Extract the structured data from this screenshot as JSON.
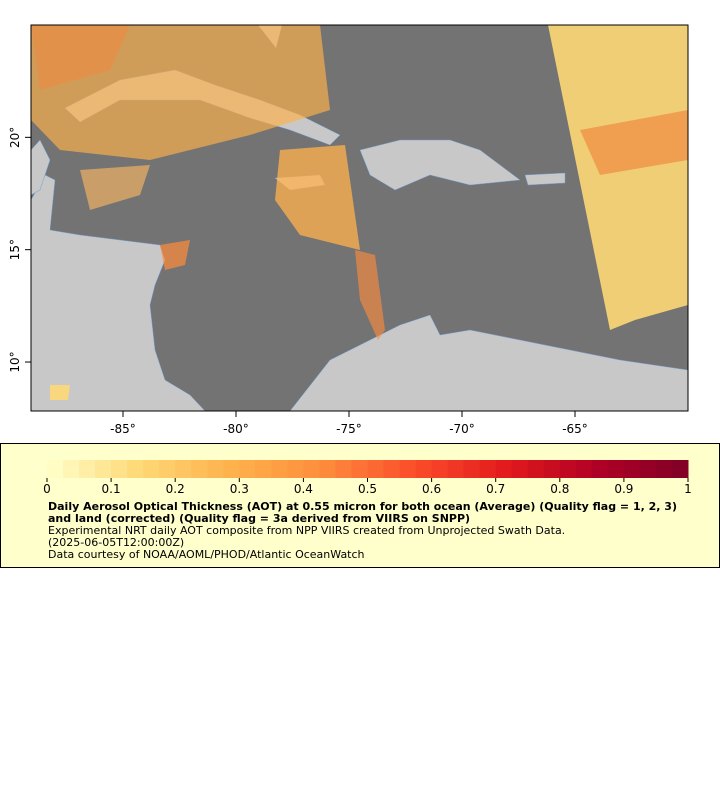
{
  "map": {
    "xlim": [
      -89.07,
      -60
    ],
    "ylim": [
      7.82,
      25
    ],
    "xticks": [
      {
        "value": -85,
        "label": "-85°"
      },
      {
        "value": -80,
        "label": "-80°"
      },
      {
        "value": -75,
        "label": "-75°"
      },
      {
        "value": -70,
        "label": "-70°"
      },
      {
        "value": -65,
        "label": "-65°"
      }
    ],
    "yticks": [
      {
        "value": 10,
        "label": "10°"
      },
      {
        "value": 15,
        "label": "15°"
      },
      {
        "value": 20,
        "label": "20°"
      }
    ]
  },
  "colorbar": {
    "lim": [
      0,
      1
    ],
    "ticks": [
      0,
      0.1,
      0.2,
      0.3,
      0.4,
      0.5,
      0.6,
      0.7,
      0.8,
      0.9,
      1
    ],
    "colors": [
      "#ffffcc",
      "#fed976",
      "#feb24c",
      "#fd8d3c",
      "#fc4e2a",
      "#e31a1c",
      "#b10026",
      "#800026"
    ],
    "steps": 40
  },
  "legend": {
    "title": "Daily Aerosol Optical Thickness (AOT) at 0.55 micron for both ocean (Average) (Quality flag = 1, 2, 3) and land (corrected) (Quality flag = 3a derived from VIIRS on SNPP)",
    "lines": [
      "Experimental NRT daily AOT composite from NPP VIIRS created from Unprojected Swath Data.",
      "(2025-06-05T12:00:00Z)",
      "Data courtesy of NOAA/AOML/PHOD/Atlantic OceanWatch"
    ]
  }
}
